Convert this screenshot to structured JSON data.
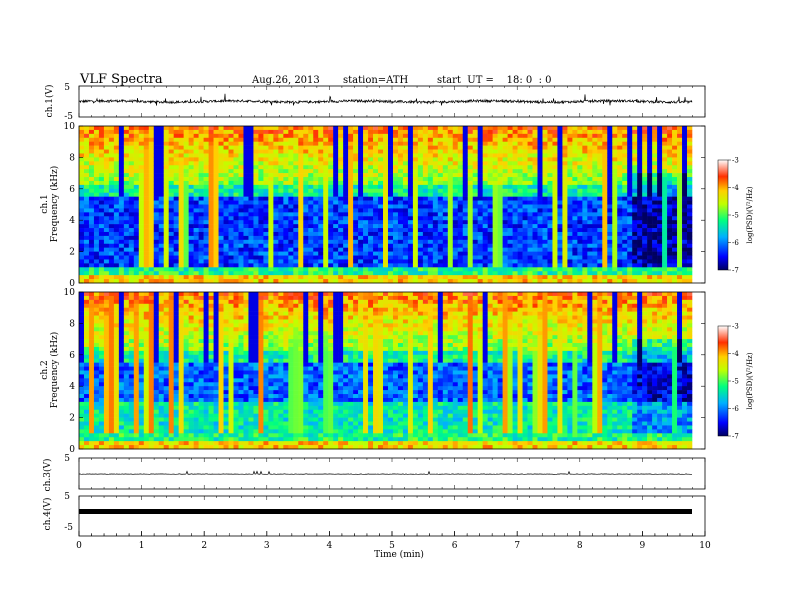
{
  "header": {
    "title": "VLF Spectra",
    "date": "Aug.26, 2013",
    "station": "station=ATH",
    "start": "start  UT =    18: 0  : 0"
  },
  "chart_data": [
    {
      "type": "line",
      "panel": "ch1-waveform",
      "ylabel": "ch.1(V)",
      "yticks": [
        "5",
        "-5"
      ],
      "ylim": [
        -5,
        5
      ],
      "description_of_trace": "noisy waveform around ~ -0.5 V with frequent spikes"
    },
    {
      "type": "heatmap",
      "panel": "ch1-spectrogram",
      "ylabel_channel": "ch.1",
      "ylabel": "Frequency  (kHz)",
      "yticks": [
        "0",
        "2",
        "4",
        "6",
        "8",
        "10"
      ],
      "ylim": [
        0,
        10
      ],
      "xlim": [
        0,
        10
      ],
      "colorbar": {
        "label": "log(PSD)(V²/Hz)",
        "ticks": [
          "-3",
          "-4",
          "-5",
          "-6",
          "-7"
        ],
        "range": [
          -7,
          -3
        ]
      }
    },
    {
      "type": "heatmap",
      "panel": "ch2-spectrogram",
      "ylabel_channel": "ch.2",
      "ylabel": "Frequency  (kHz)",
      "yticks": [
        "0",
        "2",
        "4",
        "6",
        "8",
        "10"
      ],
      "ylim": [
        0,
        10
      ],
      "xlim": [
        0,
        10
      ],
      "colorbar": {
        "label": "log(PSD)(V²/Hz)",
        "ticks": [
          "-3",
          "-4",
          "-5",
          "-6",
          "-7"
        ],
        "range": [
          -7,
          -3
        ]
      }
    },
    {
      "type": "line",
      "panel": "ch3-waveform",
      "ylabel": "ch.3(V)",
      "yticks": [
        "5"
      ],
      "ylim": [
        -5,
        5
      ]
    },
    {
      "type": "line",
      "panel": "ch4-waveform",
      "ylabel": "ch.4(V)",
      "yticks": [
        "5",
        "-5"
      ],
      "ylim": [
        -5,
        5
      ]
    }
  ],
  "xaxis": {
    "label": "Time  (min)",
    "ticks": [
      "0",
      "1",
      "2",
      "3",
      "4",
      "5",
      "6",
      "7",
      "8",
      "9",
      "10"
    ],
    "xlim": [
      0,
      10
    ]
  }
}
